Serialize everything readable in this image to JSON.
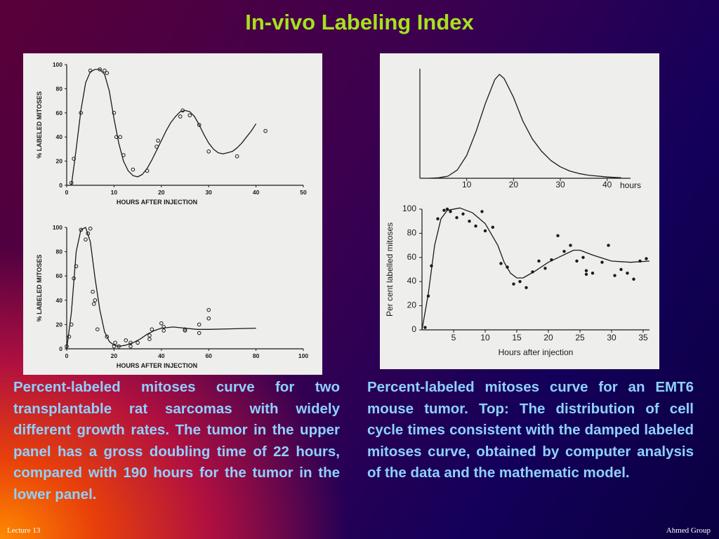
{
  "page": {
    "title": "In-vivo Labeling Index",
    "footer_left": "Lecture 13",
    "footer_right": "Ahmed Group",
    "caption_left": "Percent-labeled mitoses curve for two transplantable rat sarcomas with widely different growth rates. The tumor in the upper panel has a gross doubling time of 22 hours, compared with 190 hours for the tumor in the lower panel.",
    "caption_right": "Percent-labeled mitoses curve for an EMT6 mouse tumor. Top: The distribution of cell cycle times consistent with the damped labeled mitoses curve, obtained by computer analysis of the data and the mathematic model."
  },
  "colors": {
    "title": "#a6e21c",
    "caption": "#8fd0ff",
    "panel": "#eeeeec",
    "ink": "#1a1a1a"
  },
  "chart_data": [
    {
      "type": "scatter",
      "xlabel": "HOURS AFTER INJECTION",
      "ylabel": "% LABELED MITOSES",
      "xlim": [
        0,
        50
      ],
      "ylim": [
        0,
        100
      ],
      "xticks": [
        "0",
        "10",
        "20",
        "30",
        "40",
        "50"
      ],
      "yticks": [
        "0",
        "20",
        "40",
        "60",
        "80",
        "100"
      ],
      "points": [
        [
          1,
          2
        ],
        [
          1.5,
          22
        ],
        [
          3,
          60
        ],
        [
          5,
          95
        ],
        [
          7,
          96
        ],
        [
          8,
          95
        ],
        [
          8.5,
          93
        ],
        [
          10,
          60
        ],
        [
          10.5,
          40
        ],
        [
          11.3,
          40
        ],
        [
          12,
          25
        ],
        [
          14,
          13
        ],
        [
          17,
          12
        ],
        [
          19,
          32
        ],
        [
          19.3,
          37
        ],
        [
          24,
          57
        ],
        [
          24.5,
          62
        ],
        [
          26,
          58
        ],
        [
          28,
          50
        ],
        [
          30,
          28
        ],
        [
          36,
          24
        ],
        [
          42,
          45
        ]
      ],
      "curve": [
        [
          1,
          0
        ],
        [
          2,
          30
        ],
        [
          3,
          62
        ],
        [
          4,
          85
        ],
        [
          5,
          94
        ],
        [
          6,
          96
        ],
        [
          7,
          96
        ],
        [
          8,
          92
        ],
        [
          9,
          78
        ],
        [
          10,
          55
        ],
        [
          11,
          35
        ],
        [
          12,
          20
        ],
        [
          13,
          12
        ],
        [
          14,
          8
        ],
        [
          15,
          7
        ],
        [
          16,
          9
        ],
        [
          17,
          14
        ],
        [
          18,
          21
        ],
        [
          19,
          29
        ],
        [
          20,
          37
        ],
        [
          21,
          45
        ],
        [
          22,
          52
        ],
        [
          23,
          57
        ],
        [
          24,
          61
        ],
        [
          25,
          62
        ],
        [
          26,
          61
        ],
        [
          27,
          57
        ],
        [
          28,
          50
        ],
        [
          29,
          42
        ],
        [
          30,
          35
        ],
        [
          31,
          30
        ],
        [
          32,
          27
        ],
        [
          33,
          26
        ],
        [
          34,
          27
        ],
        [
          35,
          28
        ],
        [
          36,
          31
        ],
        [
          37,
          35
        ],
        [
          38,
          40
        ],
        [
          39,
          45
        ],
        [
          40,
          51
        ]
      ]
    },
    {
      "type": "scatter",
      "xlabel": "HOURS AFTER INJECTION",
      "ylabel": "% LABELED MITOSES",
      "xlim": [
        0,
        100
      ],
      "ylim": [
        0,
        100
      ],
      "xticks": [
        "0",
        "20",
        "40",
        "60",
        "80",
        "100"
      ],
      "yticks": [
        "0",
        "20",
        "40",
        "60",
        "80",
        "100"
      ],
      "points": [
        [
          0,
          2
        ],
        [
          1,
          10
        ],
        [
          2,
          20
        ],
        [
          3,
          58
        ],
        [
          4,
          68
        ],
        [
          6,
          98
        ],
        [
          8,
          90
        ],
        [
          9,
          95
        ],
        [
          10,
          99
        ],
        [
          11,
          47
        ],
        [
          11.5,
          37
        ],
        [
          12,
          40
        ],
        [
          13,
          16
        ],
        [
          17,
          10
        ],
        [
          20,
          2
        ],
        [
          20.5,
          5
        ],
        [
          22,
          2
        ],
        [
          25,
          7
        ],
        [
          27,
          5
        ],
        [
          27,
          2
        ],
        [
          30,
          5
        ],
        [
          35,
          8
        ],
        [
          35,
          11
        ],
        [
          36,
          16
        ],
        [
          40,
          21
        ],
        [
          41,
          18
        ],
        [
          41,
          15
        ],
        [
          50,
          15
        ],
        [
          50,
          16
        ],
        [
          56,
          20
        ],
        [
          56,
          13
        ],
        [
          60,
          25
        ],
        [
          60,
          32
        ]
      ],
      "curve": [
        [
          0,
          0
        ],
        [
          2,
          30
        ],
        [
          4,
          80
        ],
        [
          6,
          98
        ],
        [
          8,
          100
        ],
        [
          10,
          88
        ],
        [
          12,
          58
        ],
        [
          14,
          32
        ],
        [
          16,
          14
        ],
        [
          18,
          6
        ],
        [
          20,
          3
        ],
        [
          22,
          2
        ],
        [
          25,
          3
        ],
        [
          28,
          5
        ],
        [
          31,
          8
        ],
        [
          34,
          12
        ],
        [
          37,
          15
        ],
        [
          40,
          17
        ],
        [
          45,
          18
        ],
        [
          50,
          17
        ],
        [
          55,
          16
        ],
        [
          60,
          16
        ],
        [
          70,
          16.5
        ],
        [
          80,
          17
        ]
      ]
    },
    {
      "type": "line",
      "xlabel": "hours",
      "ylabel": "",
      "xlim": [
        0,
        45
      ],
      "xticks": [
        "10",
        "20",
        "30",
        "40"
      ],
      "series": [
        {
          "values": [
            [
              2,
              0
            ],
            [
              4,
              0.005
            ],
            [
              6,
              0.02
            ],
            [
              8,
              0.08
            ],
            [
              10,
              0.22
            ],
            [
              12,
              0.45
            ],
            [
              14,
              0.72
            ],
            [
              16,
              0.95
            ],
            [
              17,
              1.0
            ],
            [
              18,
              0.96
            ],
            [
              20,
              0.78
            ],
            [
              22,
              0.55
            ],
            [
              24,
              0.38
            ],
            [
              26,
              0.26
            ],
            [
              28,
              0.17
            ],
            [
              30,
              0.11
            ],
            [
              32,
              0.07
            ],
            [
              34,
              0.045
            ],
            [
              36,
              0.03
            ],
            [
              40,
              0.012
            ],
            [
              43,
              0.005
            ]
          ]
        }
      ]
    },
    {
      "type": "scatter",
      "xlabel": "Hours after injection",
      "ylabel": "Per cent labelled mitoses",
      "xlim": [
        0,
        36
      ],
      "ylim": [
        0,
        100
      ],
      "xticks": [
        "5",
        "10",
        "15",
        "20",
        "25",
        "30",
        "35"
      ],
      "yticks": [
        "0",
        "20",
        "40",
        "60",
        "80",
        "100"
      ],
      "points": [
        [
          0.5,
          2
        ],
        [
          1,
          28
        ],
        [
          1.5,
          53
        ],
        [
          2.5,
          92
        ],
        [
          3.5,
          99
        ],
        [
          4,
          100
        ],
        [
          4.5,
          98
        ],
        [
          5.5,
          93
        ],
        [
          6.5,
          96
        ],
        [
          7.5,
          90
        ],
        [
          8.5,
          86
        ],
        [
          9.5,
          98
        ],
        [
          10,
          82
        ],
        [
          11.2,
          85
        ],
        [
          12.5,
          55
        ],
        [
          13.5,
          52
        ],
        [
          14.5,
          38
        ],
        [
          15.5,
          40
        ],
        [
          16.5,
          35
        ],
        [
          17.5,
          48
        ],
        [
          18.5,
          57
        ],
        [
          19.5,
          51
        ],
        [
          20.5,
          58
        ],
        [
          21.5,
          78
        ],
        [
          22.5,
          65
        ],
        [
          23.5,
          70
        ],
        [
          24.5,
          57
        ],
        [
          25.5,
          60
        ],
        [
          26,
          49
        ],
        [
          26,
          46
        ],
        [
          27,
          47
        ],
        [
          28.5,
          56
        ],
        [
          29.5,
          70
        ],
        [
          30.5,
          45
        ],
        [
          31.5,
          50
        ],
        [
          32.5,
          47
        ],
        [
          33.5,
          42
        ],
        [
          34.5,
          57
        ],
        [
          35.5,
          59
        ]
      ],
      "curve": [
        [
          0,
          0
        ],
        [
          1,
          30
        ],
        [
          2,
          70
        ],
        [
          3,
          92
        ],
        [
          4,
          99
        ],
        [
          6,
          101
        ],
        [
          8,
          97
        ],
        [
          10,
          88
        ],
        [
          12,
          70
        ],
        [
          13,
          56
        ],
        [
          14,
          47
        ],
        [
          15,
          43
        ],
        [
          16,
          43
        ],
        [
          18,
          49
        ],
        [
          20,
          56
        ],
        [
          22,
          61
        ],
        [
          24,
          66
        ],
        [
          25,
          66
        ],
        [
          27,
          62
        ],
        [
          30,
          57
        ],
        [
          33,
          56
        ],
        [
          36,
          57
        ]
      ]
    }
  ]
}
